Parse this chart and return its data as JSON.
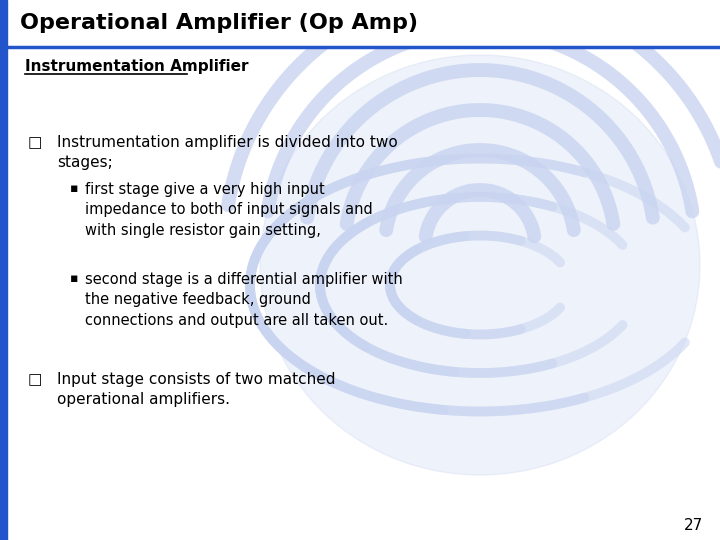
{
  "title": "Operational Amplifier (Op Amp)",
  "subtitle": "Instrumentation Amplifier",
  "title_color": "#000000",
  "subtitle_color": "#000000",
  "title_bg": "#ffffff",
  "slide_bg": "#ffffff",
  "left_bar_color": "#2255cc",
  "title_fontsize": 16,
  "subtitle_fontsize": 11,
  "body_fontsize": 11,
  "page_number": "27",
  "bullet1_main": "Instrumentation amplifier is divided into two\nstages;",
  "bullet1_sub1": "first stage give a very high input\nimpedance to both of input signals and\nwith single resistor gain setting,",
  "bullet1_sub2": "second stage is a differential amplifier with\nthe negative feedback, ground\nconnections and output are all taken out.",
  "bullet2": "Input stage consists of two matched\noperational amplifiers.",
  "watermark_color": "#c8d4f0",
  "accent_color": "#2255cc"
}
